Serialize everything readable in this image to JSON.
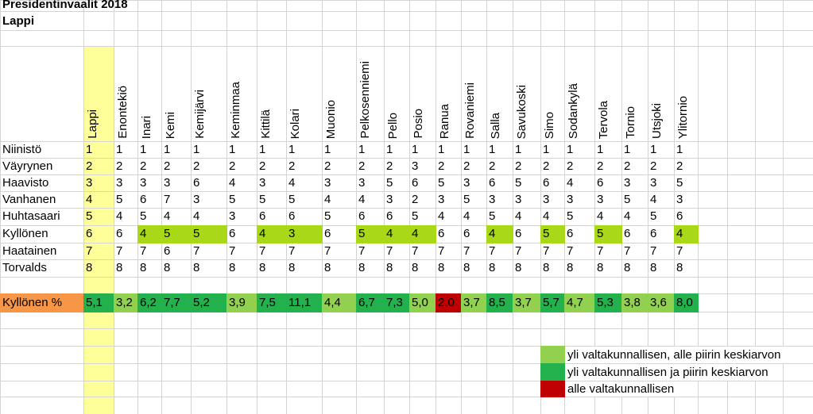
{
  "header": {
    "title": "Presidentinvaalit 2018",
    "subtitle": "Lappi"
  },
  "district_fill": "#ffff99",
  "municipalities": [
    "Lappi",
    "Enontekiö",
    "Inari",
    "Kemi",
    "Kemijärvi",
    "Keminmaa",
    "Kittilä",
    "Kolari",
    "Muonio",
    "Pelkosenniemi",
    "Pello",
    "Posio",
    "Ranua",
    "Rovaniemi",
    "Salla",
    "Savukoski",
    "Simo",
    "Sodankylä",
    "Tervola",
    "Tornio",
    "Utsjoki",
    "Ylitornio"
  ],
  "rows": [
    {
      "name": "Niinistö",
      "ranks": [
        1,
        1,
        1,
        1,
        1,
        1,
        1,
        1,
        1,
        1,
        1,
        1,
        1,
        1,
        1,
        1,
        1,
        1,
        1,
        1,
        1,
        1
      ]
    },
    {
      "name": "Väyrynen",
      "ranks": [
        2,
        2,
        2,
        2,
        2,
        2,
        2,
        2,
        2,
        2,
        2,
        3,
        2,
        2,
        2,
        2,
        2,
        2,
        2,
        2,
        2,
        2
      ]
    },
    {
      "name": "Haavisto",
      "ranks": [
        3,
        3,
        3,
        3,
        6,
        4,
        3,
        4,
        3,
        3,
        5,
        6,
        5,
        3,
        6,
        5,
        6,
        4,
        6,
        3,
        3,
        5
      ]
    },
    {
      "name": "Vanhanen",
      "ranks": [
        4,
        5,
        6,
        7,
        3,
        5,
        5,
        5,
        4,
        4,
        3,
        2,
        3,
        5,
        3,
        3,
        3,
        3,
        3,
        5,
        4,
        3
      ]
    },
    {
      "name": "Huhtasaari",
      "ranks": [
        5,
        4,
        5,
        4,
        4,
        3,
        6,
        6,
        5,
        6,
        6,
        5,
        4,
        4,
        5,
        4,
        4,
        5,
        4,
        4,
        5,
        6
      ]
    },
    {
      "name": "Kyllönen",
      "ranks": [
        6,
        6,
        4,
        5,
        5,
        6,
        4,
        3,
        6,
        5,
        4,
        4,
        6,
        6,
        4,
        6,
        5,
        6,
        5,
        6,
        6,
        4
      ],
      "colors": [
        null,
        null,
        "#a9d818",
        "#a9d818",
        "#a9d818",
        null,
        "#a9d818",
        "#a9d818",
        null,
        "#a9d818",
        "#a9d818",
        "#a9d818",
        null,
        null,
        "#a9d818",
        null,
        "#a9d818",
        null,
        "#a9d818",
        null,
        null,
        "#a9d818"
      ]
    },
    {
      "name": "Haatainen",
      "ranks": [
        7,
        7,
        7,
        6,
        7,
        7,
        7,
        7,
        7,
        7,
        7,
        7,
        7,
        7,
        7,
        7,
        7,
        7,
        7,
        7,
        7,
        7
      ]
    },
    {
      "name": "Torvalds",
      "ranks": [
        8,
        8,
        8,
        8,
        8,
        8,
        8,
        8,
        8,
        8,
        8,
        8,
        8,
        8,
        8,
        8,
        8,
        8,
        8,
        8,
        8,
        8
      ]
    }
  ],
  "percent": {
    "label": "Kyllönen %",
    "label_color": "#f79646",
    "values": [
      "5,1",
      "3,2",
      "6,2",
      "7,7",
      "5,2",
      "3,9",
      "7,5",
      "11,1",
      "4,4",
      "6,7",
      "7,3",
      "5,0",
      "2,0",
      "3,7",
      "8,5",
      "3,7",
      "5,7",
      "4,7",
      "5,3",
      "3,8",
      "3,6",
      "8,0"
    ],
    "colors": [
      "#22b14c",
      "#92d050",
      "#22b14c",
      "#22b14c",
      "#22b14c",
      "#92d050",
      "#22b14c",
      "#22b14c",
      "#92d050",
      "#22b14c",
      "#22b14c",
      "#92d050",
      "#c00000",
      "#92d050",
      "#22b14c",
      "#92d050",
      "#22b14c",
      "#92d050",
      "#22b14c",
      "#92d050",
      "#92d050",
      "#22b14c"
    ]
  },
  "legend": [
    {
      "color": "#92d050",
      "label": "yli valtakunnallisen, alle piirin keskiarvon"
    },
    {
      "color": "#22b14c",
      "label": "yli valtakunnallisen ja piirin keskiarvon"
    },
    {
      "color": "#c00000",
      "label": "alle valtakunnallisen"
    }
  ]
}
